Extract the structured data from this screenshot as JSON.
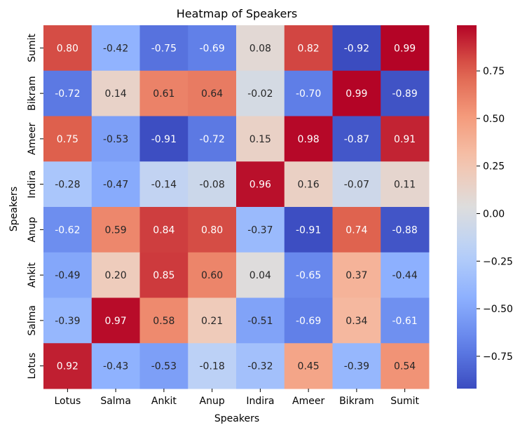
{
  "chart_data": {
    "type": "heatmap",
    "title": "Heatmap of Speakers",
    "xlabel": "Speakers",
    "ylabel": "Speakers",
    "x_categories": [
      "Lotus",
      "Salma",
      "Ankit",
      "Anup",
      "Indira",
      "Ameer",
      "Bikram",
      "Sumit"
    ],
    "y_categories": [
      "Sumit",
      "Bikram",
      "Ameer",
      "Indira",
      "Anup",
      "Ankit",
      "Salma",
      "Lotus"
    ],
    "values": [
      [
        0.8,
        -0.42,
        -0.75,
        -0.69,
        0.08,
        0.82,
        -0.92,
        0.99
      ],
      [
        -0.72,
        0.14,
        0.61,
        0.64,
        -0.02,
        -0.7,
        0.99,
        -0.89
      ],
      [
        0.75,
        -0.53,
        -0.91,
        -0.72,
        0.15,
        0.98,
        -0.87,
        0.91
      ],
      [
        -0.28,
        -0.47,
        -0.14,
        -0.08,
        0.96,
        0.16,
        -0.07,
        0.11
      ],
      [
        -0.62,
        0.59,
        0.84,
        0.8,
        -0.37,
        -0.91,
        0.74,
        -0.88
      ],
      [
        -0.49,
        0.2,
        0.85,
        0.6,
        0.04,
        -0.65,
        0.37,
        -0.44
      ],
      [
        -0.39,
        0.97,
        0.58,
        0.21,
        -0.51,
        -0.69,
        0.34,
        -0.61
      ],
      [
        0.92,
        -0.43,
        -0.53,
        -0.18,
        -0.32,
        0.45,
        -0.39,
        0.54
      ]
    ],
    "cell_labels": [
      [
        "0.80",
        "-0.42",
        "-0.75",
        "-0.69",
        "0.08",
        "0.82",
        "-0.92",
        "0.99"
      ],
      [
        "-0.72",
        "0.14",
        "0.61",
        "0.64",
        "-0.02",
        "-0.70",
        "0.99",
        "-0.89"
      ],
      [
        "0.75",
        "-0.53",
        "-0.91",
        "-0.72",
        "0.15",
        "0.98",
        "-0.87",
        "0.91"
      ],
      [
        "-0.28",
        "-0.47",
        "-0.14",
        "-0.08",
        "0.96",
        "0.16",
        "-0.07",
        "0.11"
      ],
      [
        "-0.62",
        "0.59",
        "0.84",
        "0.80",
        "-0.37",
        "-0.91",
        "0.74",
        "-0.88"
      ],
      [
        "-0.49",
        "0.20",
        "0.85",
        "0.60",
        "0.04",
        "-0.65",
        "0.37",
        "-0.44"
      ],
      [
        "-0.39",
        "0.97",
        "0.58",
        "0.21",
        "-0.51",
        "-0.69",
        "0.34",
        "-0.61"
      ],
      [
        "0.92",
        "-0.43",
        "-0.53",
        "-0.18",
        "-0.32",
        "0.45",
        "-0.39",
        "0.54"
      ]
    ],
    "colormap": "coolwarm",
    "colorbar": {
      "range": [
        -0.92,
        0.99
      ],
      "ticks": [
        -0.75,
        -0.5,
        -0.25,
        0.0,
        0.25,
        0.5,
        0.75
      ],
      "tick_labels": [
        "−0.75",
        "−0.50",
        "−0.25",
        "0.00",
        "0.25",
        "0.50",
        "0.75"
      ]
    }
  }
}
